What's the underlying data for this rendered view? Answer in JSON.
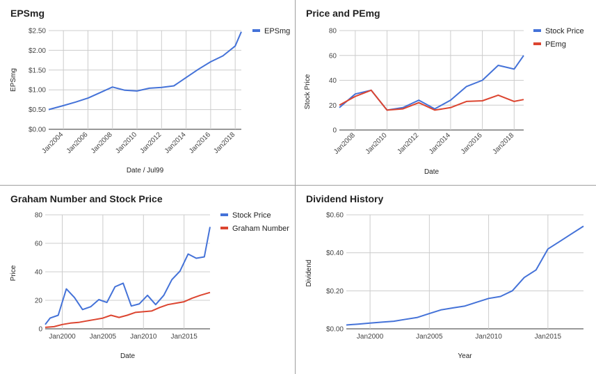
{
  "chart_data": [
    {
      "type": "line",
      "title": "EPSmg",
      "xlabel": "Date / Jul99",
      "ylabel": "EPSmg",
      "xlim": [
        2002.8,
        2018.5
      ],
      "ylim": [
        0,
        2.5
      ],
      "x_ticks": [
        2004,
        2006,
        2008,
        2010,
        2012,
        2014,
        2016,
        2018
      ],
      "x_tick_labels": [
        "Jan2004",
        "Jan2006",
        "Jan2008",
        "Jan2010",
        "Jan2012",
        "Jan2014",
        "Jan2016",
        "Jan2018"
      ],
      "y_ticks": [
        0,
        0.5,
        1,
        1.5,
        2,
        2.5
      ],
      "y_tick_labels": [
        "$0.00",
        "$0.50",
        "$1.00",
        "$1.50",
        "$2.00",
        "$2.50"
      ],
      "x_tick_rotate": true,
      "grid": true,
      "legend_position": "top-right",
      "series": [
        {
          "name": "EPSmg",
          "color": "#4472d8",
          "x": [
            2002.8,
            2004,
            2005,
            2006,
            2007,
            2008,
            2009,
            2010,
            2011,
            2012,
            2013,
            2014,
            2015,
            2016,
            2017,
            2018,
            2018.5
          ],
          "y": [
            0.5,
            0.6,
            0.69,
            0.79,
            0.93,
            1.07,
            0.99,
            0.97,
            1.04,
            1.06,
            1.1,
            1.31,
            1.52,
            1.71,
            1.86,
            2.11,
            2.47
          ]
        }
      ]
    },
    {
      "type": "line",
      "title": "Price and PEmg",
      "xlabel": "Date",
      "ylabel": "Stock Price",
      "xlim": [
        2007,
        2018.6
      ],
      "ylim": [
        0,
        80
      ],
      "x_ticks": [
        2008,
        2010,
        2012,
        2014,
        2016,
        2018
      ],
      "x_tick_labels": [
        "Jan2008",
        "Jan2010",
        "Jan2012",
        "Jan2014",
        "Jan2016",
        "Jan2018"
      ],
      "y_ticks": [
        0,
        20,
        40,
        60,
        80
      ],
      "y_tick_labels": [
        "0",
        "20",
        "40",
        "60",
        "80"
      ],
      "x_tick_rotate": true,
      "grid": true,
      "legend_position": "top-right",
      "series": [
        {
          "name": "Stock Price",
          "color": "#4472d8",
          "x": [
            2007,
            2008,
            2009,
            2010,
            2011,
            2012,
            2013,
            2014,
            2015,
            2016,
            2017,
            2018,
            2018.6
          ],
          "y": [
            18,
            29,
            32,
            16,
            18,
            24,
            17,
            24,
            35,
            40,
            52,
            49,
            60
          ]
        },
        {
          "name": "PEmg",
          "color": "#dc4530",
          "x": [
            2007,
            2008,
            2009,
            2010,
            2011,
            2012,
            2013,
            2014,
            2015,
            2016,
            2017,
            2018,
            2018.6
          ],
          "y": [
            20,
            27,
            32,
            16,
            17,
            22,
            16,
            18,
            23,
            23.5,
            28,
            23,
            24.5
          ]
        }
      ]
    },
    {
      "type": "line",
      "title": "Graham Number and Stock Price",
      "xlabel": "Date",
      "ylabel": "Price",
      "xlim": [
        1997.9,
        2018.2
      ],
      "ylim": [
        0,
        80
      ],
      "x_ticks": [
        2000,
        2005,
        2010,
        2015
      ],
      "x_tick_labels": [
        "Jan2000",
        "Jan2005",
        "Jan2010",
        "Jan2015"
      ],
      "y_ticks": [
        0,
        20,
        40,
        60,
        80
      ],
      "y_tick_labels": [
        "0",
        "20",
        "40",
        "60",
        "80"
      ],
      "x_tick_rotate": false,
      "grid": true,
      "legend_position": "top-right",
      "series": [
        {
          "name": "Stock Price",
          "color": "#4472d8",
          "x": [
            1997.9,
            1998.5,
            1999.5,
            2000.5,
            2001.5,
            2002.5,
            2003.5,
            2004.5,
            2005.5,
            2006.5,
            2007.5,
            2008.5,
            2009.5,
            2010.5,
            2011.5,
            2012.5,
            2013.5,
            2014.5,
            2015.5,
            2016.5,
            2017.5,
            2018.2
          ],
          "y": [
            3,
            7.5,
            9.5,
            28,
            22,
            13.5,
            15.5,
            20.5,
            18.5,
            29.5,
            32,
            16,
            17.5,
            23.5,
            17,
            23.5,
            34.5,
            40.5,
            52.5,
            49.5,
            50.5,
            71.5
          ]
        },
        {
          "name": "Graham Number",
          "color": "#dc4530",
          "x": [
            1997.9,
            1999,
            2000,
            2001,
            2002,
            2003,
            2004,
            2005,
            2006,
            2007,
            2008,
            2009,
            2010,
            2011,
            2012,
            2013,
            2014,
            2015,
            2016,
            2017,
            2018.2
          ],
          "y": [
            1,
            1.5,
            3,
            4,
            4.5,
            5.5,
            6.5,
            7.5,
            9.5,
            8,
            9.5,
            11.5,
            12,
            12.5,
            15,
            17,
            18,
            19,
            21.5,
            23.5,
            25.5
          ]
        }
      ]
    },
    {
      "type": "line",
      "title": "Dividend History",
      "xlabel": "Year",
      "ylabel": "Dividend",
      "xlim": [
        1998,
        2018
      ],
      "ylim": [
        0,
        0.6
      ],
      "x_ticks": [
        2000,
        2005,
        2010,
        2015
      ],
      "x_tick_labels": [
        "Jan2000",
        "Jan2005",
        "Jan2010",
        "Jan2015"
      ],
      "y_ticks": [
        0,
        0.2,
        0.4,
        0.6
      ],
      "y_tick_labels": [
        "$0.00",
        "$0.20",
        "$0.40",
        "$0.60"
      ],
      "x_tick_rotate": false,
      "grid": true,
      "legend_position": "none",
      "series": [
        {
          "name": "",
          "color": "#4472d8",
          "x": [
            1998,
            1999,
            2000,
            2001,
            2002,
            2003,
            2004,
            2005,
            2006,
            2007,
            2008,
            2009,
            2010,
            2011,
            2012,
            2013,
            2014,
            2015,
            2016,
            2017,
            2018
          ],
          "y": [
            0.02,
            0.025,
            0.03,
            0.035,
            0.04,
            0.05,
            0.06,
            0.08,
            0.1,
            0.11,
            0.12,
            0.14,
            0.16,
            0.17,
            0.2,
            0.27,
            0.31,
            0.42,
            0.46,
            0.5,
            0.54
          ]
        }
      ]
    }
  ]
}
